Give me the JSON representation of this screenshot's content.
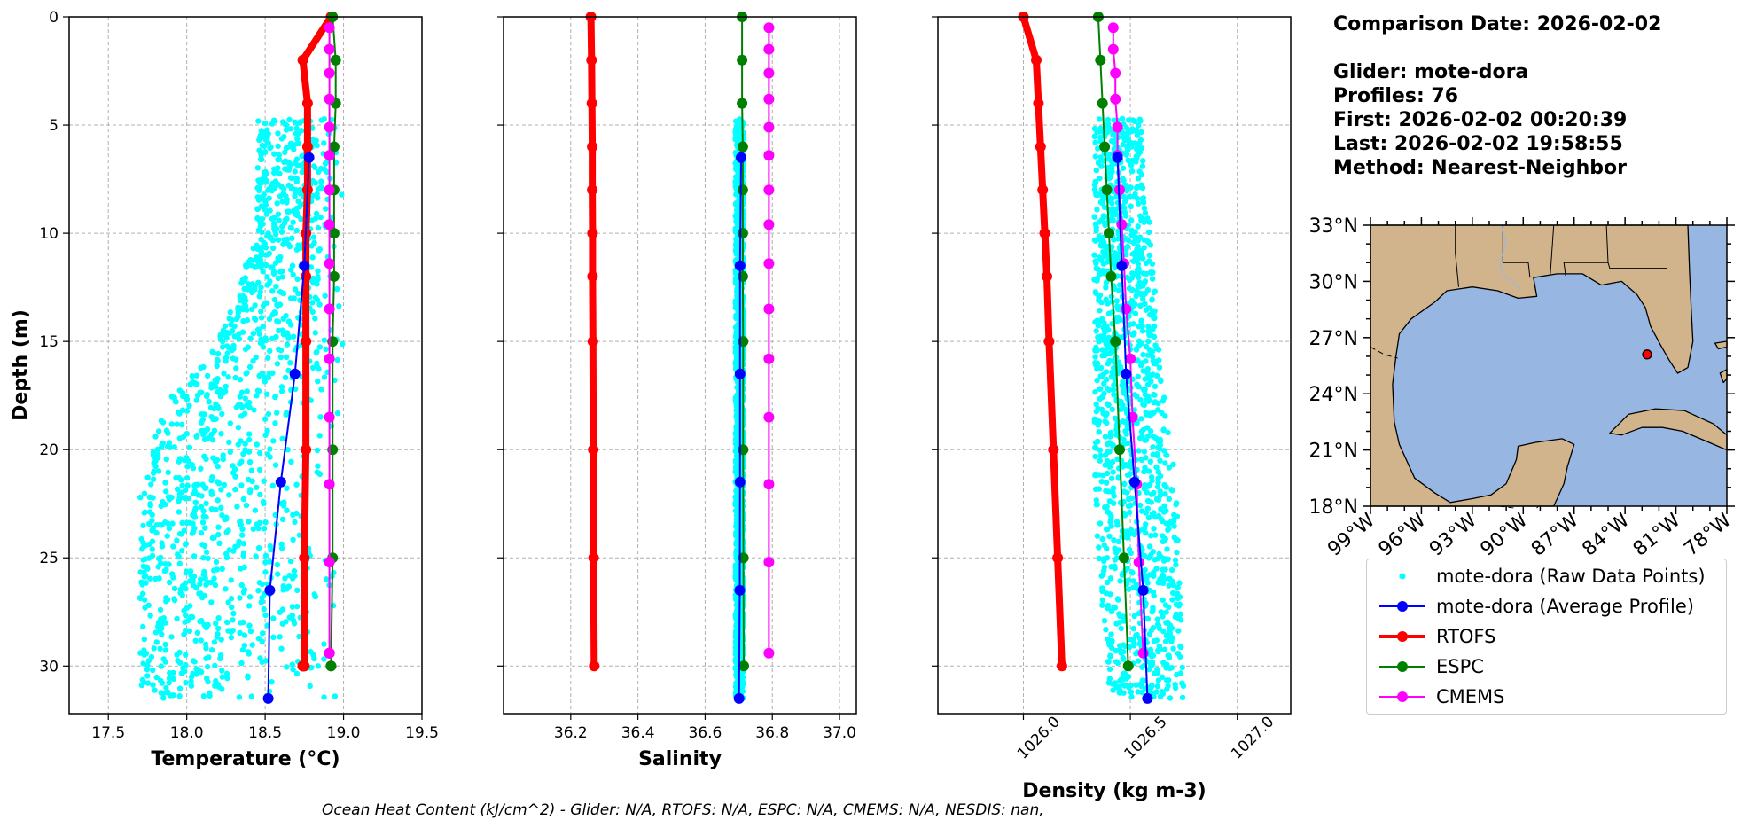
{
  "info": {
    "comparison_date": "Comparison Date: 2026-02-02",
    "glider": "Glider: mote-dora",
    "profiles": "Profiles: 76",
    "first": "First: 2026-02-02 00:20:39",
    "last": "Last: 2026-02-02 19:58:55",
    "method": "Method: Nearest-Neighbor"
  },
  "footer": "Ocean Heat Content (kJ/cm^2) - Glider: N/A,  RTOFS: N/A,  ESPC: N/A,  CMEMS: N/A,  NESDIS: nan,",
  "legend": [
    {
      "label": "mote-dora (Raw Data Points)",
      "color": "#00ffff",
      "style": "points"
    },
    {
      "label": "mote-dora (Average Profile)",
      "color": "#0000ff",
      "style": "line-marker"
    },
    {
      "label": "RTOFS",
      "color": "#ff0000",
      "style": "line-marker"
    },
    {
      "label": "ESPC",
      "color": "#008000",
      "style": "line-marker"
    },
    {
      "label": "CMEMS",
      "color": "#ff00ff",
      "style": "line-marker"
    }
  ],
  "chart_data": [
    {
      "type": "line",
      "xlabel": "Temperature (°C)",
      "ylabel": "Depth (m)",
      "xlim": [
        17.25,
        19.5
      ],
      "ylim": [
        32.2,
        0
      ],
      "xticks": [
        "17.5",
        "18.0",
        "18.5",
        "19.0",
        "19.5"
      ],
      "xtick_values": [
        17.5,
        18.0,
        18.5,
        19.0,
        19.5
      ],
      "yticks": [
        "0",
        "5",
        "10",
        "15",
        "20",
        "25",
        "30"
      ],
      "ytick_values": [
        0,
        5,
        10,
        15,
        20,
        25,
        30
      ],
      "grid": true,
      "raw_points_envelope": [
        [
          4.7,
          18.45,
          19.0
        ],
        [
          10,
          18.45,
          19.0
        ],
        [
          15,
          18.2,
          19.0
        ],
        [
          18,
          17.85,
          19.0
        ],
        [
          22,
          17.7,
          19.0
        ],
        [
          28,
          17.7,
          19.0
        ],
        [
          31.5,
          17.7,
          19.0
        ]
      ],
      "series": [
        {
          "name": "mote-dora (Average Profile)",
          "color": "#0000ff",
          "x": [
            18.78,
            18.75,
            18.69,
            18.6,
            18.53,
            18.52
          ],
          "depth": [
            6.5,
            11.5,
            16.5,
            21.5,
            26.5,
            31.5
          ]
        },
        {
          "name": "RTOFS",
          "color": "#ff0000",
          "x": [
            18.92,
            18.74,
            18.77,
            18.77,
            18.77,
            18.76,
            18.76,
            18.76,
            18.76,
            18.75,
            18.75,
            18.75,
            18.74,
            18.74,
            18.74,
            18.74
          ],
          "depth": [
            0,
            2,
            4,
            6,
            8,
            10,
            12,
            15,
            20,
            25,
            30,
            30,
            30,
            30,
            30,
            30
          ]
        },
        {
          "name": "ESPC",
          "color": "#008000",
          "x": [
            18.93,
            18.95,
            18.95,
            18.94,
            18.94,
            18.94,
            18.94,
            18.93,
            18.93,
            18.93,
            18.92,
            18.92
          ],
          "depth": [
            0,
            2,
            4,
            6,
            8,
            10,
            12,
            15,
            20,
            25,
            30,
            30
          ]
        },
        {
          "name": "CMEMS",
          "color": "#ff00ff",
          "x": [
            18.91,
            18.91,
            18.91,
            18.91,
            18.91,
            18.91,
            18.91,
            18.91,
            18.91,
            18.91,
            18.91,
            18.91,
            18.91,
            18.91,
            18.91,
            18.91,
            18.91,
            18.91,
            18.91
          ],
          "depth": [
            0.5,
            1.5,
            2.6,
            3.8,
            5.1,
            6.4,
            8.0,
            9.6,
            11.4,
            13.5,
            15.8,
            18.5,
            21.6,
            25.2,
            29.4,
            29.4,
            29.4,
            29.4,
            29.4
          ]
        }
      ]
    },
    {
      "type": "line",
      "xlabel": "Salinity",
      "ylabel": "",
      "xlim": [
        36.0,
        37.05
      ],
      "ylim": [
        32.2,
        0
      ],
      "xticks": [
        "36.2",
        "36.4",
        "36.6",
        "36.8",
        "37.0"
      ],
      "xtick_values": [
        36.2,
        36.4,
        36.6,
        36.8,
        37.0
      ],
      "grid": true,
      "raw_points_envelope": [
        [
          4.7,
          36.69,
          36.715
        ],
        [
          31.5,
          36.69,
          36.715
        ]
      ],
      "series": [
        {
          "name": "mote-dora (Average Profile)",
          "color": "#0000ff",
          "x": [
            36.707,
            36.704,
            36.704,
            36.704,
            36.703,
            36.701
          ],
          "depth": [
            6.5,
            11.5,
            16.5,
            21.5,
            26.5,
            31.5
          ]
        },
        {
          "name": "RTOFS",
          "color": "#ff0000",
          "x": [
            36.26,
            36.262,
            36.263,
            36.264,
            36.264,
            36.265,
            36.265,
            36.266,
            36.267,
            36.268,
            36.27
          ],
          "depth": [
            0,
            2,
            4,
            6,
            8,
            10,
            12,
            15,
            20,
            25,
            30
          ]
        },
        {
          "name": "ESPC",
          "color": "#008000",
          "x": [
            36.71,
            36.71,
            36.71,
            36.712,
            36.712,
            36.712,
            36.712,
            36.713,
            36.713,
            36.714,
            36.715
          ],
          "depth": [
            0,
            2,
            4,
            6,
            8,
            10,
            12,
            15,
            20,
            25,
            30
          ]
        },
        {
          "name": "CMEMS",
          "color": "#ff00ff",
          "x": [
            36.79,
            36.79,
            36.79,
            36.79,
            36.79,
            36.79,
            36.79,
            36.79,
            36.79,
            36.79,
            36.79,
            36.79,
            36.79,
            36.79,
            36.79
          ],
          "depth": [
            0.5,
            1.5,
            2.6,
            3.8,
            5.1,
            6.4,
            8.0,
            9.6,
            11.4,
            13.5,
            15.8,
            18.5,
            21.6,
            25.2,
            29.4
          ]
        }
      ]
    },
    {
      "type": "line",
      "xlabel": "Density (kg m-3)",
      "ylabel": "",
      "xlim": [
        1025.6,
        1027.25
      ],
      "ylim": [
        32.2,
        0
      ],
      "xticks": [
        "1026.0",
        "1026.5",
        "1027.0"
      ],
      "xtick_values": [
        1026.0,
        1026.5,
        1027.0
      ],
      "grid": true,
      "raw_points_envelope": [
        [
          4.7,
          1026.33,
          1026.55
        ],
        [
          17,
          1026.33,
          1026.65
        ],
        [
          22,
          1026.33,
          1026.72
        ],
        [
          31.5,
          1026.4,
          1026.75
        ]
      ],
      "series": [
        {
          "name": "mote-dora (Average Profile)",
          "color": "#0000ff",
          "x": [
            1026.44,
            1026.46,
            1026.48,
            1026.52,
            1026.56,
            1026.58
          ],
          "depth": [
            6.5,
            11.5,
            16.5,
            21.5,
            26.5,
            31.5
          ]
        },
        {
          "name": "RTOFS",
          "color": "#ff0000",
          "x": [
            1026.0,
            1026.06,
            1026.07,
            1026.08,
            1026.09,
            1026.1,
            1026.11,
            1026.12,
            1026.14,
            1026.16,
            1026.18
          ],
          "depth": [
            0,
            2,
            4,
            6,
            8,
            10,
            12,
            15,
            20,
            25,
            30
          ]
        },
        {
          "name": "ESPC",
          "color": "#008000",
          "x": [
            1026.35,
            1026.36,
            1026.37,
            1026.38,
            1026.39,
            1026.4,
            1026.41,
            1026.43,
            1026.45,
            1026.47,
            1026.49
          ],
          "depth": [
            0,
            2,
            4,
            6,
            8,
            10,
            12,
            15,
            20,
            25,
            30
          ]
        },
        {
          "name": "CMEMS",
          "color": "#ff00ff",
          "x": [
            1026.42,
            1026.42,
            1026.43,
            1026.43,
            1026.44,
            1026.44,
            1026.45,
            1026.46,
            1026.47,
            1026.48,
            1026.5,
            1026.51,
            1026.53,
            1026.54,
            1026.56
          ],
          "depth": [
            0.5,
            1.5,
            2.6,
            3.8,
            5.1,
            6.4,
            8.0,
            9.6,
            11.4,
            13.5,
            15.8,
            18.5,
            21.6,
            25.2,
            29.4
          ]
        }
      ]
    }
  ],
  "map": {
    "lat_ticks": [
      "33°N",
      "30°N",
      "27°N",
      "24°N",
      "21°N",
      "18°N"
    ],
    "lat_values": [
      33,
      30,
      27,
      24,
      21,
      18
    ],
    "lon_ticks": [
      "99°W",
      "96°W",
      "93°W",
      "90°W",
      "87°W",
      "84°W",
      "81°W",
      "78°W"
    ],
    "lon_values": [
      -99,
      -96,
      -93,
      -90,
      -87,
      -84,
      -81,
      -78
    ],
    "lon_range": [
      -99,
      -78
    ],
    "lat_range": [
      18,
      33
    ],
    "glider_position": {
      "lon": -82.7,
      "lat": 26.1
    },
    "water_color": "#97b6e1",
    "land_color": "#d2b48c",
    "glider_marker_color": "#ff0000"
  }
}
